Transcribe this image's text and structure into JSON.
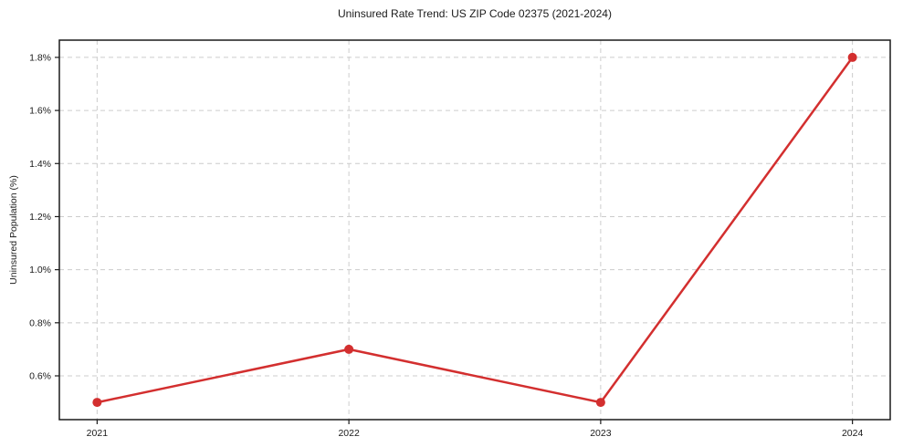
{
  "chart_data": {
    "type": "line",
    "title": "Uninsured Rate Trend: US ZIP Code 02375 (2021-2024)",
    "xlabel": "",
    "ylabel": "Uninsured Population (%)",
    "categories": [
      "2021",
      "2022",
      "2023",
      "2024"
    ],
    "x": [
      2021,
      2022,
      2023,
      2024
    ],
    "series": [
      {
        "name": "Uninsured rate",
        "values": [
          0.5,
          0.7,
          0.5,
          1.8
        ]
      }
    ],
    "xlim": [
      2020.85,
      2024.15
    ],
    "ylim": [
      0.435,
      1.865
    ],
    "y_ticks": [
      0.6,
      0.8,
      1.0,
      1.2,
      1.4,
      1.6,
      1.8
    ],
    "y_tick_labels": [
      "0.6%",
      "0.8%",
      "1.0%",
      "1.2%",
      "1.4%",
      "1.6%",
      "1.8%"
    ],
    "grid": true,
    "legend": "none",
    "colors": {
      "line": "#d32f2f",
      "marker": "#d32f2f",
      "grid": "#cccccc",
      "frame": "#1a1a1a",
      "text": "#1a1a1a"
    }
  }
}
